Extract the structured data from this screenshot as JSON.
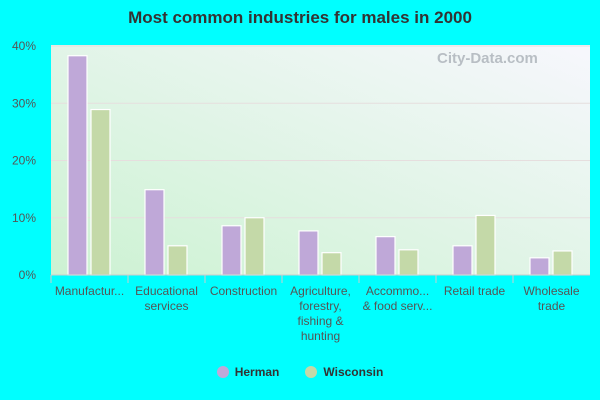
{
  "chart_data": {
    "type": "bar",
    "title": "Most common industries for males in 2000",
    "categories": [
      [
        "Manufactur..."
      ],
      [
        "Educational",
        "services"
      ],
      [
        "Construction"
      ],
      [
        "Agriculture,",
        "forestry,",
        "fishing &",
        "hunting"
      ],
      [
        "Accommo...",
        "& food serv..."
      ],
      [
        "Retail trade"
      ],
      [
        "Wholesale",
        "trade"
      ]
    ],
    "series": [
      {
        "name": "Herman",
        "color": "#bfa8d8",
        "values": [
          38.3,
          14.9,
          8.6,
          7.7,
          6.7,
          5.1,
          3.0
        ]
      },
      {
        "name": "Wisconsin",
        "color": "#c4d9a8",
        "values": [
          28.9,
          5.1,
          10.0,
          3.9,
          4.4,
          10.4,
          4.2
        ]
      }
    ],
    "ylim": [
      0,
      40
    ],
    "yticks": [
      "0%",
      "10%",
      "20%",
      "30%",
      "40%"
    ],
    "grid": true,
    "legend": "bottom"
  },
  "watermark": "City-Data.com"
}
